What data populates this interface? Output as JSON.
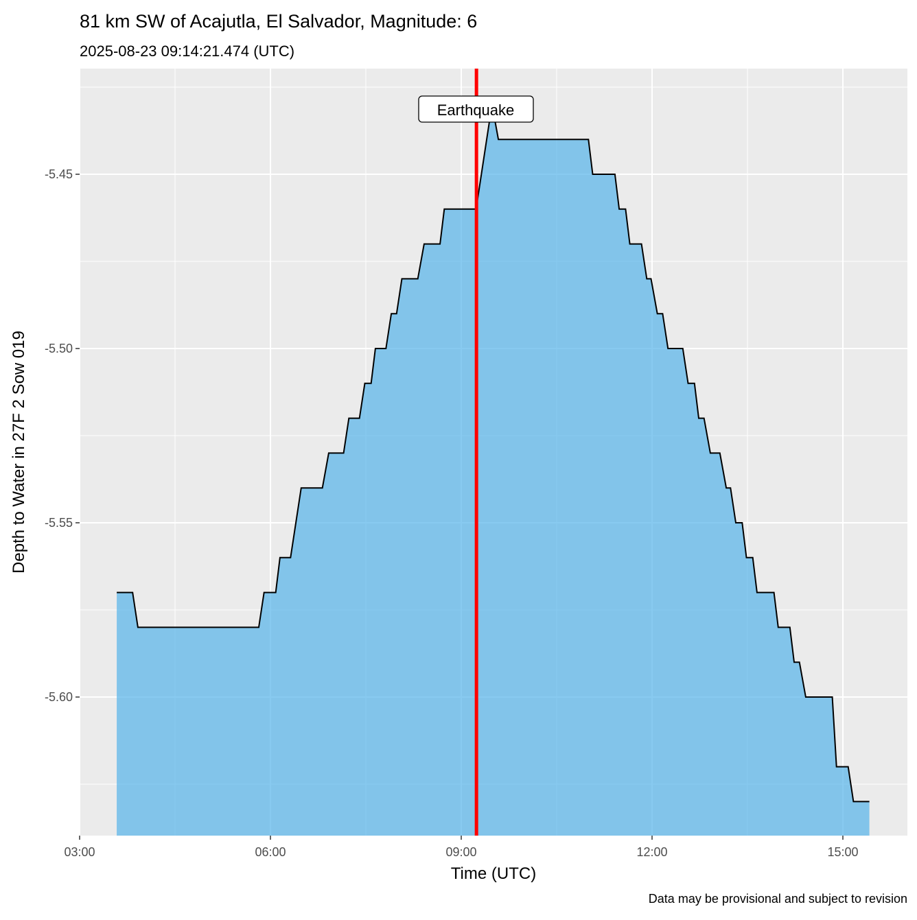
{
  "chart_data": {
    "type": "area",
    "title": "81 km SW of Acajutla, El Salvador, Magnitude: 6",
    "subtitle": "2025-08-23 09:14:21.474 (UTC)",
    "xlabel": "Time (UTC)",
    "ylabel": "Depth to Water in 27F 2 Sow 019",
    "caption": "Data may be provisional and subject to revision",
    "x_ticks": [
      "03:00",
      "06:00",
      "09:00",
      "12:00",
      "15:00"
    ],
    "y_ticks": [
      "-5.45",
      "-5.50",
      "-5.55",
      "-5.60"
    ],
    "y_tick_values": [
      -5.45,
      -5.5,
      -5.55,
      -5.6
    ],
    "xlim": [
      "03:00",
      "16:01"
    ],
    "ylim": [
      -5.64,
      -5.42
    ],
    "grid": true,
    "fill_color": "#56B4E9",
    "line_color": "#000000",
    "event": {
      "label": "Earthquake",
      "time": "09:14:21",
      "color": "#FF0000"
    },
    "points": [
      [
        "03:35",
        -5.57
      ],
      [
        "03:50",
        -5.57
      ],
      [
        "03:55",
        -5.58
      ],
      [
        "05:49",
        -5.58
      ],
      [
        "05:54",
        -5.57
      ],
      [
        "06:05",
        -5.57
      ],
      [
        "06:09",
        -5.56
      ],
      [
        "06:19",
        -5.56
      ],
      [
        "06:29",
        -5.54
      ],
      [
        "06:49",
        -5.54
      ],
      [
        "06:55",
        -5.53
      ],
      [
        "07:09",
        -5.53
      ],
      [
        "07:14",
        -5.52
      ],
      [
        "07:24",
        -5.52
      ],
      [
        "07:29",
        -5.51
      ],
      [
        "07:35",
        -5.51
      ],
      [
        "07:39",
        -5.5
      ],
      [
        "07:49",
        -5.5
      ],
      [
        "07:54",
        -5.49
      ],
      [
        "07:59",
        -5.49
      ],
      [
        "08:04",
        -5.48
      ],
      [
        "08:19",
        -5.48
      ],
      [
        "08:25",
        -5.47
      ],
      [
        "08:40",
        -5.47
      ],
      [
        "08:44",
        -5.46
      ],
      [
        "09:14",
        -5.46
      ],
      [
        "09:29",
        -5.43
      ],
      [
        "09:35",
        -5.44
      ],
      [
        "11:00",
        -5.44
      ],
      [
        "11:04",
        -5.45
      ],
      [
        "11:25",
        -5.45
      ],
      [
        "11:29",
        -5.46
      ],
      [
        "11:35",
        -5.46
      ],
      [
        "11:39",
        -5.47
      ],
      [
        "11:50",
        -5.47
      ],
      [
        "11:55",
        -5.48
      ],
      [
        "11:59",
        -5.48
      ],
      [
        "12:05",
        -5.49
      ],
      [
        "12:10",
        -5.49
      ],
      [
        "12:15",
        -5.5
      ],
      [
        "12:29",
        -5.5
      ],
      [
        "12:34",
        -5.51
      ],
      [
        "12:40",
        -5.51
      ],
      [
        "12:44",
        -5.52
      ],
      [
        "12:49",
        -5.52
      ],
      [
        "12:55",
        -5.53
      ],
      [
        "13:04",
        -5.53
      ],
      [
        "13:10",
        -5.54
      ],
      [
        "13:14",
        -5.54
      ],
      [
        "13:19",
        -5.55
      ],
      [
        "13:25",
        -5.55
      ],
      [
        "13:29",
        -5.56
      ],
      [
        "13:35",
        -5.56
      ],
      [
        "13:39",
        -5.57
      ],
      [
        "13:55",
        -5.57
      ],
      [
        "13:59",
        -5.58
      ],
      [
        "14:10",
        -5.58
      ],
      [
        "14:14",
        -5.59
      ],
      [
        "14:19",
        -5.59
      ],
      [
        "14:25",
        -5.6
      ],
      [
        "14:50",
        -5.6
      ],
      [
        "14:54",
        -5.62
      ],
      [
        "15:05",
        -5.62
      ],
      [
        "15:10",
        -5.63
      ],
      [
        "15:25",
        -5.63
      ]
    ]
  }
}
